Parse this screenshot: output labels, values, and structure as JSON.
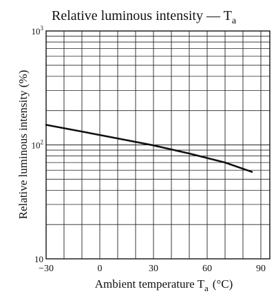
{
  "chart_data": {
    "type": "line",
    "title": "Relative luminous intensity — T",
    "title_subscript": "a",
    "xlabel": "Ambient temperature  T",
    "xlabel_subscript": "a",
    "xlabel_unit": "(°C)",
    "ylabel": "Relative luminous intensity  (%)",
    "xlim": [
      -30,
      95
    ],
    "ylim": [
      10,
      1000
    ],
    "yscale": "log",
    "grid": true,
    "x_ticks": [
      -30,
      0,
      30,
      60,
      90
    ],
    "x_tick_labels": [
      "−30",
      "0",
      "30",
      "60",
      "90"
    ],
    "y_ticks": [
      {
        "value": 10,
        "base": "10",
        "exp": ""
      },
      {
        "value": 100,
        "base": "10",
        "exp": "2"
      },
      {
        "value": 1000,
        "base": "10",
        "exp": "3"
      }
    ],
    "series": [
      {
        "x": [
          -30,
          -10,
          10,
          30,
          50,
          70,
          85
        ],
        "y": [
          150,
          131,
          114,
          99,
          84,
          70,
          58
        ]
      }
    ]
  }
}
